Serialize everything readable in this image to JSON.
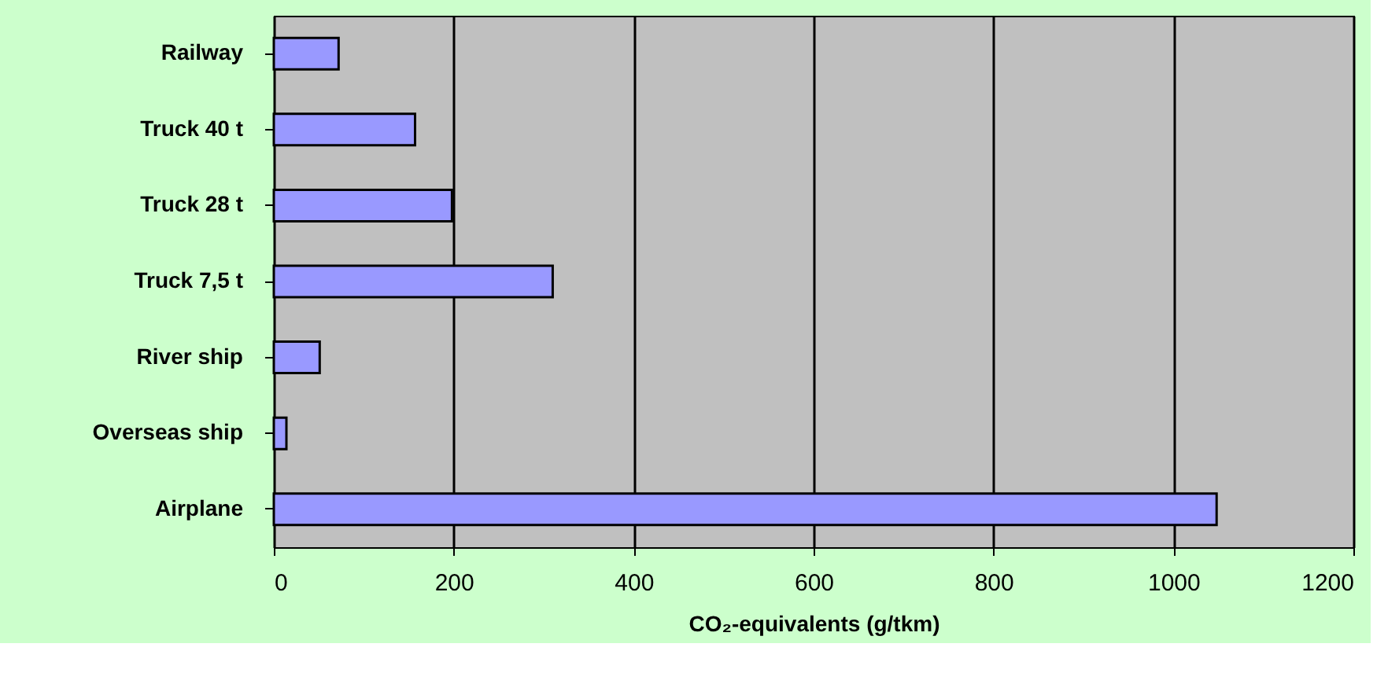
{
  "chart_data": {
    "type": "bar",
    "orientation": "horizontal",
    "xlabel": "CO₂-equivalents (g/tkm)",
    "categories": [
      "Railway",
      "Truck 40 t",
      "Truck 28 t",
      "Truck 7,5 t",
      "River ship",
      "Overseas ship",
      "Airplane"
    ],
    "values": [
      72,
      157,
      198,
      310,
      51,
      14,
      1048
    ],
    "color": "#9999ff",
    "xlim": [
      0,
      1200
    ],
    "xticks": [
      0,
      200,
      400,
      600,
      800,
      1000,
      1200
    ],
    "grid": "x"
  }
}
